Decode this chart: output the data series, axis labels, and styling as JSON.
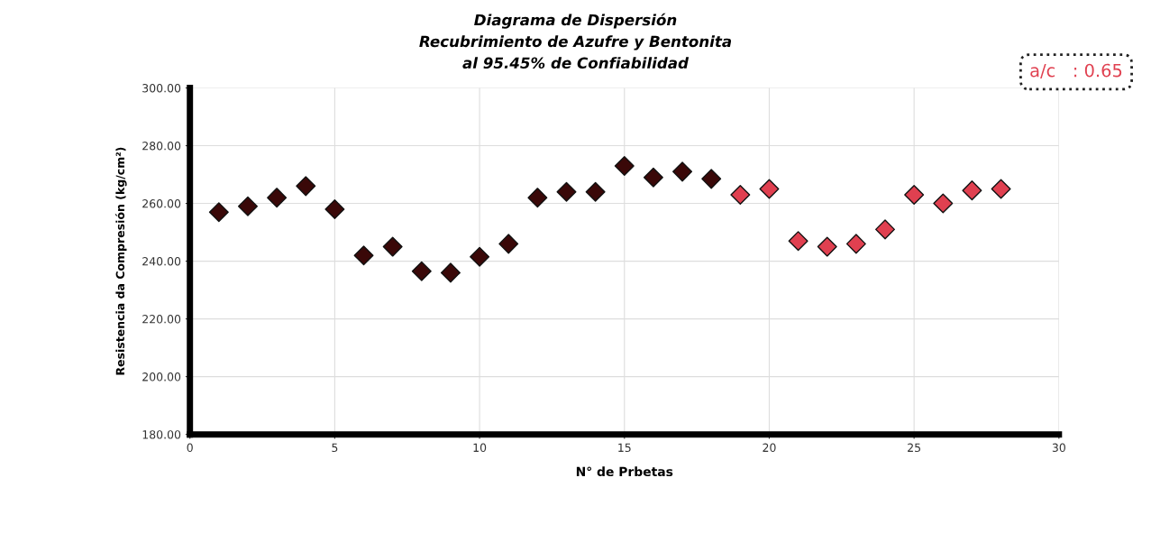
{
  "chart_data": {
    "type": "scatter",
    "title": "Diagrama de Dispersión\nRecubrimiento de Azufre y Bentonita\nal 95.45% de Confiabilidad",
    "xlabel": "N° de Prbetas",
    "ylabel": "Resistencia da Compresión (kg/cm²)",
    "annotations": [
      "a/c   : 0.65"
    ],
    "series": [
      {
        "color": "#3a0808",
        "x": [
          1,
          2,
          3,
          4,
          5,
          6,
          7,
          8,
          9,
          10,
          11,
          12,
          13,
          14,
          15,
          16,
          17,
          18
        ],
        "values": [
          257,
          259,
          262,
          266,
          258,
          242,
          245,
          236.5,
          236,
          241.5,
          246,
          262,
          264,
          264,
          273,
          269,
          271,
          268.5
        ]
      },
      {
        "color": "#e04050",
        "x": [
          19,
          20,
          21,
          22,
          23,
          24,
          25,
          26,
          27,
          28
        ],
        "values": [
          263,
          265,
          247,
          245,
          246,
          251,
          263,
          260,
          264.5,
          265
        ]
      }
    ],
    "xlim": [
      0,
      30
    ],
    "xticks": [
      0,
      5,
      10,
      15,
      20,
      25,
      30
    ],
    "ylim": [
      180,
      300
    ],
    "yticks": [
      {
        "value": 180,
        "label": "180.00"
      },
      {
        "value": 200,
        "label": "200.00"
      },
      {
        "value": 220,
        "label": "220.00"
      },
      {
        "value": 240,
        "label": "240.00"
      },
      {
        "value": 260,
        "label": "260.00"
      },
      {
        "value": 280,
        "label": "280.00"
      },
      {
        "value": 300,
        "label": "300.00"
      }
    ],
    "grid": true,
    "marker": "diamond"
  }
}
